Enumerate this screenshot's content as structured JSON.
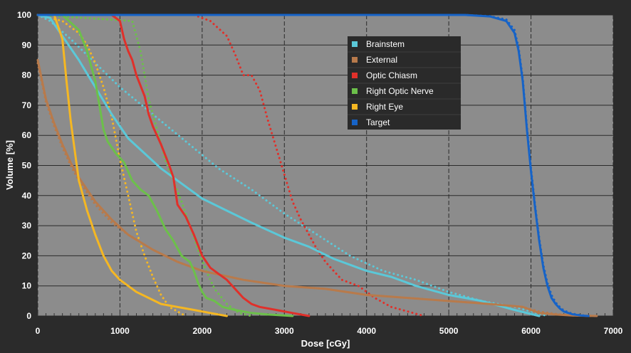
{
  "chart_data": {
    "type": "line",
    "xlabel": "Dose [cGy]",
    "ylabel": "Volume [%]",
    "xlim": [
      0,
      7000
    ],
    "ylim": [
      0,
      100
    ],
    "xticks": [
      0,
      1000,
      2000,
      3000,
      4000,
      5000,
      6000,
      7000
    ],
    "yticks": [
      0,
      10,
      20,
      30,
      40,
      50,
      60,
      70,
      80,
      90,
      100
    ],
    "grid": true,
    "legend_position": "upper-center",
    "background_color": "#8c8c8c",
    "series": [
      {
        "name": "Brainstem",
        "color": "#5bc8d8",
        "style": "solid",
        "x": [
          0,
          150,
          300,
          500,
          700,
          900,
          1100,
          1300,
          1500,
          1700,
          2000,
          2300,
          2600,
          3000,
          3300,
          3600,
          4000,
          4300,
          4600,
          5000,
          5400,
          5800,
          6100
        ],
        "y": [
          100,
          99,
          93,
          85,
          76,
          67,
          59,
          54,
          49,
          45,
          39,
          35,
          31,
          26,
          23,
          19,
          15,
          13,
          10,
          7,
          5,
          2,
          0
        ]
      },
      {
        "name": "Brainstem",
        "color": "#5bc8d8",
        "style": "dotted",
        "x": [
          0,
          150,
          400,
          700,
          1000,
          1400,
          1800,
          2200,
          2600,
          3000,
          3400,
          3800,
          4200,
          4600,
          5000,
          5400,
          5800,
          6200
        ],
        "y": [
          100,
          98,
          92,
          84,
          76,
          67,
          58,
          49,
          42,
          34,
          27,
          20,
          15,
          12,
          8,
          5,
          3,
          0
        ]
      },
      {
        "name": "External",
        "color": "#b87a4b",
        "style": "solid",
        "x": [
          0,
          100,
          200,
          300,
          400,
          500,
          700,
          900,
          1100,
          1400,
          1700,
          2000,
          2500,
          3000,
          3500,
          4000,
          4500,
          5000,
          5500,
          5900,
          6100,
          6300,
          6500,
          6800
        ],
        "y": [
          85,
          72,
          64,
          57,
          51,
          46,
          38,
          32,
          27,
          22,
          18,
          15,
          12,
          10,
          9,
          7,
          6,
          5,
          4,
          3,
          1,
          0.5,
          0.2,
          0
        ]
      },
      {
        "name": "External",
        "color": "#b87a4b",
        "style": "dotted",
        "x": [
          0,
          100,
          200,
          300,
          400,
          500,
          700,
          900,
          1100,
          1400,
          1700,
          2000,
          2500,
          3000,
          3500,
          4000,
          4500,
          5000,
          5500,
          5900,
          6100,
          6300,
          6500,
          6800
        ],
        "y": [
          84,
          71,
          63,
          56,
          50,
          45,
          37,
          31,
          27,
          22,
          18,
          15,
          12,
          10,
          9,
          7,
          6,
          5,
          4,
          3,
          1.5,
          0.7,
          0.2,
          0
        ]
      },
      {
        "name": "Optic Chiasm",
        "color": "#e0302a",
        "style": "solid",
        "x": [
          0,
          900,
          1000,
          1050,
          1100,
          1150,
          1200,
          1300,
          1350,
          1400,
          1500,
          1600,
          1650,
          1700,
          1800,
          1900,
          2000,
          2100,
          2200,
          2300,
          2400,
          2500,
          2600,
          2700,
          2900,
          3100,
          3300
        ],
        "y": [
          100,
          100,
          98,
          92,
          88,
          85,
          80,
          73,
          67,
          63,
          57,
          50,
          46,
          37,
          33,
          27,
          20,
          16,
          14,
          12,
          9,
          6,
          4,
          3,
          2,
          1,
          0
        ]
      },
      {
        "name": "Optic Chiasm",
        "color": "#e0302a",
        "style": "dotted",
        "x": [
          0,
          1900,
          2100,
          2300,
          2400,
          2500,
          2600,
          2700,
          2800,
          2900,
          3000,
          3100,
          3200,
          3300,
          3400,
          3500,
          3600,
          3700,
          3900,
          4100,
          4300,
          4700
        ],
        "y": [
          100,
          100,
          98,
          93,
          87,
          80,
          80,
          75,
          65,
          56,
          47,
          38,
          32,
          27,
          22,
          18,
          15,
          12,
          10,
          6,
          3,
          0
        ]
      },
      {
        "name": "Right Optic Nerve",
        "color": "#6cc04a",
        "style": "solid",
        "x": [
          0,
          300,
          500,
          600,
          700,
          750,
          800,
          850,
          950,
          1050,
          1150,
          1250,
          1350,
          1450,
          1550,
          1650,
          1750,
          1850,
          1900,
          1950,
          2000,
          2050,
          2150,
          2250,
          2400,
          2600,
          2800,
          3000,
          3100
        ],
        "y": [
          100,
          100,
          95,
          88,
          78,
          70,
          62,
          58,
          54,
          51,
          45,
          42,
          40,
          35,
          29,
          25,
          20,
          18,
          15,
          11,
          8,
          6,
          5,
          3,
          2,
          1,
          0.5,
          0.2,
          0
        ]
      },
      {
        "name": "Right Optic Nerve",
        "color": "#6cc04a",
        "style": "dotted",
        "x": [
          0,
          1150,
          1250,
          1350,
          1450,
          1550,
          1650,
          1750,
          1850,
          1950,
          2050,
          2150,
          2300,
          2450,
          2600
        ],
        "y": [
          100,
          98,
          88,
          72,
          62,
          52,
          45,
          38,
          30,
          22,
          15,
          9,
          4,
          1,
          0
        ]
      },
      {
        "name": "Right Eye",
        "color": "#f5b722",
        "style": "solid",
        "x": [
          0,
          200,
          300,
          350,
          400,
          450,
          500,
          600,
          700,
          800,
          900,
          1000,
          1100,
          1200,
          1350,
          1500,
          1700,
          1900,
          2100,
          2300
        ],
        "y": [
          100,
          100,
          92,
          78,
          65,
          55,
          45,
          35,
          27,
          20,
          15,
          12,
          10,
          8,
          6,
          4,
          3,
          2,
          1,
          0
        ]
      },
      {
        "name": "Right Eye",
        "color": "#f5b722",
        "style": "dotted",
        "x": [
          0,
          300,
          500,
          600,
          700,
          800,
          900,
          1000,
          1100,
          1200,
          1300,
          1400,
          1500,
          1600,
          1800
        ],
        "y": [
          100,
          98,
          94,
          90,
          84,
          76,
          66,
          52,
          40,
          28,
          20,
          13,
          7,
          3,
          0
        ]
      },
      {
        "name": "Target",
        "color": "#1663c7",
        "style": "solid",
        "x": [
          0,
          5200,
          5500,
          5700,
          5800,
          5850,
          5900,
          5950,
          6000,
          6050,
          6100,
          6150,
          6200,
          6250,
          6300,
          6350,
          6400,
          6500,
          6600,
          6700
        ],
        "y": [
          100,
          100,
          99.5,
          98,
          94,
          88,
          78,
          62,
          48,
          36,
          25,
          16,
          10,
          6,
          4,
          2.5,
          1.5,
          0.6,
          0.2,
          0
        ]
      },
      {
        "name": "Target",
        "color": "#1663c7",
        "style": "dotted",
        "x": [
          0,
          5200,
          5500,
          5700,
          5800,
          5850,
          5900,
          5950,
          6000,
          6050,
          6100,
          6150,
          6200,
          6250,
          6300,
          6350,
          6400,
          6500,
          6600,
          6700
        ],
        "y": [
          100,
          100,
          99.6,
          98.5,
          95,
          89,
          79,
          63,
          49,
          37,
          26,
          17,
          11,
          7,
          4.5,
          3,
          1.8,
          0.8,
          0.3,
          0
        ]
      }
    ],
    "legend": [
      {
        "label": "Brainstem",
        "color": "#5bc8d8"
      },
      {
        "label": "External",
        "color": "#b87a4b"
      },
      {
        "label": "Optic Chiasm",
        "color": "#e0302a"
      },
      {
        "label": "Right Optic Nerve",
        "color": "#6cc04a"
      },
      {
        "label": "Right Eye",
        "color": "#f5b722"
      },
      {
        "label": "Target",
        "color": "#1663c7"
      }
    ]
  }
}
